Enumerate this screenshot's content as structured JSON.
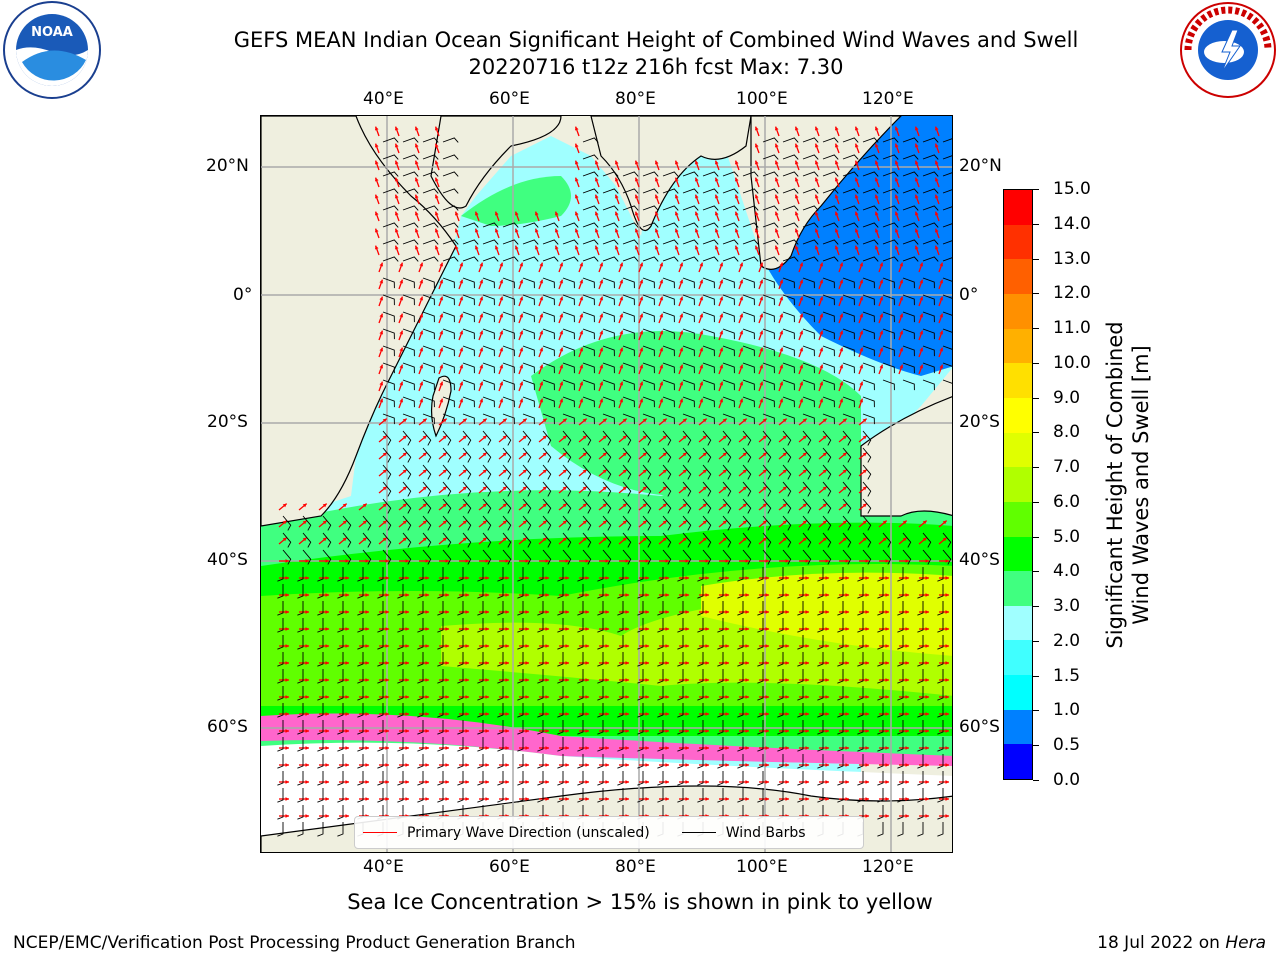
{
  "title": {
    "line1": "GEFS MEAN Indian Ocean Significant Height of Combined Wind Waves and Swell",
    "line2": "20220716 t12z 216h fcst   Max: 7.30"
  },
  "logos": {
    "left": "NOAA",
    "right": "NATIONAL WEATHER SERVICE"
  },
  "axes": {
    "lon_ticks": [
      "40°E",
      "60°E",
      "80°E",
      "100°E",
      "120°E"
    ],
    "lat_ticks": [
      "20°N",
      "0°",
      "20°S",
      "40°S",
      "60°S"
    ]
  },
  "legend": {
    "wave_label": "Primary Wave Direction (unscaled)",
    "barb_label": "Wind Barbs",
    "wave_color": "#ff0000",
    "barb_color": "#000000"
  },
  "colorbar": {
    "title_line1": "Significant Height of Combined",
    "title_line2": "Wind Waves and Swell [m]",
    "ticks": [
      "0.0",
      "0.5",
      "1.0",
      "1.5",
      "2.0",
      "3.0",
      "4.0",
      "5.0",
      "6.0",
      "7.0",
      "8.0",
      "9.0",
      "10.0",
      "11.0",
      "12.0",
      "13.0",
      "14.0",
      "15.0"
    ],
    "colors": [
      "#0000ff",
      "#0080ff",
      "#00ffff",
      "#40ffff",
      "#a0ffff",
      "#40ff80",
      "#00ff00",
      "#60ff00",
      "#b0ff00",
      "#e0ff00",
      "#ffff00",
      "#ffe000",
      "#ffb000",
      "#ff9000",
      "#ff6000",
      "#ff3000",
      "#ff0000"
    ]
  },
  "subtitle": "Sea Ice Concentration > 15% is shown in pink to yellow",
  "footer": {
    "left": "NCEP/EMC/Verification Post Processing Product Generation Branch",
    "date": "18 Jul 2022 on ",
    "machine": "Hera"
  },
  "chart_data": {
    "type": "heatmap",
    "title": "GEFS MEAN Indian Ocean Significant Height of Combined Wind Waves and Swell",
    "max_value": 7.3,
    "units": "m",
    "xlim": [
      "20°E",
      "130°E"
    ],
    "ylim": [
      "70°S",
      "28°N"
    ],
    "color_levels": [
      0.0,
      0.5,
      1.0,
      1.5,
      2.0,
      3.0,
      4.0,
      5.0,
      6.0,
      7.0,
      8.0,
      9.0,
      10.0,
      11.0,
      12.0,
      13.0,
      14.0,
      15.0
    ]
  }
}
